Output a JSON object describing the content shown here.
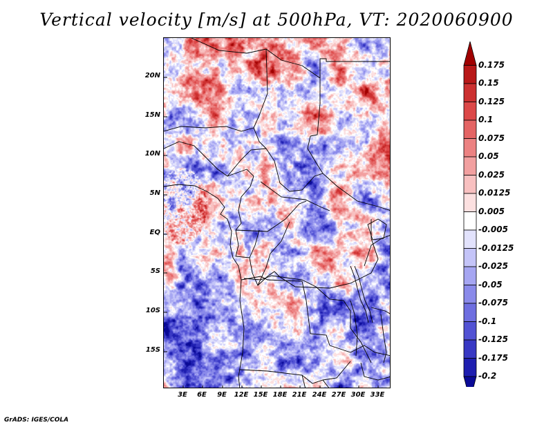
{
  "title": "Vertical velocity [m/s] at 500hPa, VT: 2020060900",
  "lat_labels": [
    "20N",
    "15N",
    "10N",
    "5N",
    "EQ",
    "5S",
    "10S",
    "15S"
  ],
  "lon_labels": [
    "3E",
    "6E",
    "9E",
    "12E",
    "15E",
    "18E",
    "21E",
    "24E",
    "27E",
    "30E",
    "33E"
  ],
  "colorbar": {
    "levels": [
      "0.175",
      "0.15",
      "0.125",
      "0.1",
      "0.075",
      "0.05",
      "0.025",
      "0.0125",
      "0.005",
      "-0.005",
      "-0.0125",
      "-0.025",
      "-0.05",
      "-0.075",
      "-0.1",
      "-0.125",
      "-0.175",
      "-0.2"
    ],
    "colors": [
      "#a00000",
      "#b81818",
      "#cc3030",
      "#dc4848",
      "#e46464",
      "#ec8282",
      "#f2a0a0",
      "#f8c0c0",
      "#fce0e0",
      "#ffffff",
      "#e2e2fc",
      "#c4c4f8",
      "#a6a6f2",
      "#8a8aea",
      "#6e6ee0",
      "#5252d4",
      "#3838c4",
      "#1e1eb0",
      "#0a0a96"
    ]
  },
  "credit": "GrADS: IGES/COLA"
}
